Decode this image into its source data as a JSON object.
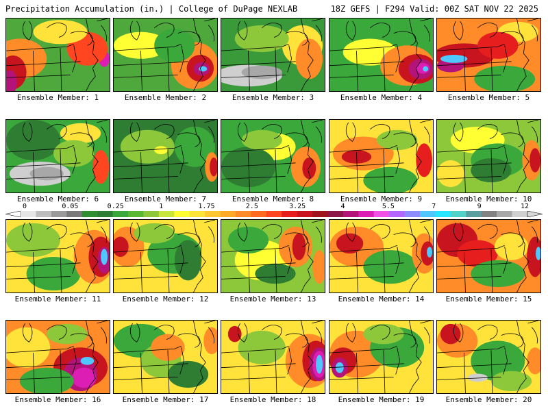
{
  "header": {
    "title": "Precipitation Accumulation (in.) | College of DuPage NEXLAB",
    "run_info": "18Z GEFS | F294 Valid: 00Z SAT NOV 22 2025"
  },
  "colorbar": {
    "labels": [
      "0",
      "0.05",
      "0.25",
      "1",
      "1.75",
      "2.5",
      "3.25",
      "4",
      "5.5",
      "7",
      "9",
      "12"
    ],
    "colors": [
      "#e6e6e6",
      "#bdbdbd",
      "#9a9a9a",
      "#7a7a7a",
      "#2f8f2f",
      "#2e7d32",
      "#3aa83a",
      "#58b832",
      "#8cc83a",
      "#c6e63c",
      "#ffff33",
      "#ffe23a",
      "#ffc832",
      "#ffaa28",
      "#ff8c28",
      "#ff6a1e",
      "#ff4620",
      "#e61e1e",
      "#c8141e",
      "#a0141e",
      "#8c1446",
      "#b4147a",
      "#dc1eb4",
      "#f050e6",
      "#b464ff",
      "#8c8cff",
      "#50c8ff",
      "#28e6ff",
      "#50d2c8",
      "#5aa0a0",
      "#828282",
      "#a8a8a8",
      "#cfcfcf"
    ]
  },
  "panels": [
    {
      "caption": "Ensemble Member: 1",
      "base": "#4fa83c",
      "blobs": [
        [
          "#ff8c28",
          20,
          60,
          40,
          30
        ],
        [
          "#c8141e",
          10,
          80,
          20,
          25
        ],
        [
          "#b4147a",
          6,
          95,
          10,
          18
        ],
        [
          "#dc1eb4",
          145,
          60,
          8,
          12
        ],
        [
          "#ff4620",
          120,
          45,
          30,
          25
        ],
        [
          "#ffe23a",
          80,
          20,
          40,
          18
        ]
      ]
    },
    {
      "caption": "Ensemble Member: 2",
      "base": "#4fa83c",
      "blobs": [
        [
          "#ffff33",
          40,
          40,
          40,
          20
        ],
        [
          "#ff8c28",
          120,
          70,
          35,
          35
        ],
        [
          "#c8141e",
          128,
          74,
          20,
          20
        ],
        [
          "#b4147a",
          130,
          75,
          12,
          10
        ],
        [
          "#50c8ff",
          132,
          75,
          6,
          4
        ],
        [
          "#3aa83a",
          90,
          40,
          30,
          25
        ]
      ]
    },
    {
      "caption": "Ensemble Member: 3",
      "base": "#3a9a3a",
      "blobs": [
        [
          "#ffe23a",
          120,
          40,
          30,
          30
        ],
        [
          "#ff8c28",
          130,
          60,
          20,
          30
        ],
        [
          "#cfcfcf",
          40,
          85,
          50,
          16
        ],
        [
          "#a8a8a8",
          60,
          80,
          30,
          10
        ],
        [
          "#8cc83a",
          60,
          30,
          40,
          20
        ]
      ]
    },
    {
      "caption": "Ensemble Member: 4",
      "base": "#3aa83a",
      "blobs": [
        [
          "#ffff33",
          60,
          50,
          40,
          20
        ],
        [
          "#ff8c28",
          115,
          70,
          40,
          30
        ],
        [
          "#c8141e",
          130,
          75,
          28,
          22
        ],
        [
          "#b4147a",
          135,
          75,
          18,
          15
        ],
        [
          "#dc1eb4",
          138,
          74,
          10,
          8
        ],
        [
          "#50c8ff",
          142,
          75,
          4,
          4
        ]
      ]
    },
    {
      "caption": "Ensemble Member: 5",
      "base": "#ff8c28",
      "blobs": [
        [
          "#c8141e",
          40,
          55,
          45,
          18
        ],
        [
          "#b4147a",
          20,
          70,
          20,
          10
        ],
        [
          "#50c8ff",
          25,
          60,
          20,
          6
        ],
        [
          "#3aa83a",
          100,
          90,
          45,
          20
        ],
        [
          "#ffe23a",
          120,
          20,
          30,
          15
        ],
        [
          "#e61e1e",
          90,
          40,
          30,
          20
        ]
      ]
    },
    {
      "caption": "Ensemble Member: 6",
      "base": "#3aa83a",
      "blobs": [
        [
          "#2e7d32",
          40,
          30,
          40,
          30
        ],
        [
          "#ffe23a",
          110,
          20,
          30,
          15
        ],
        [
          "#cfcfcf",
          50,
          80,
          45,
          18
        ],
        [
          "#a8a8a8",
          60,
          80,
          25,
          10
        ],
        [
          "#ff4620",
          140,
          70,
          12,
          25
        ],
        [
          "#8cc83a",
          100,
          50,
          30,
          20
        ]
      ]
    },
    {
      "caption": "Ensemble Member: 7",
      "base": "#2e7d32",
      "blobs": [
        [
          "#8cc83a",
          50,
          40,
          40,
          25
        ],
        [
          "#ffff33",
          70,
          45,
          10,
          6
        ],
        [
          "#3aa83a",
          120,
          40,
          30,
          30
        ],
        [
          "#ff8c28",
          145,
          70,
          10,
          22
        ],
        [
          "#c8141e",
          148,
          70,
          6,
          14
        ]
      ]
    },
    {
      "caption": "Ensemble Member: 8",
      "base": "#3aa83a",
      "blobs": [
        [
          "#ffff33",
          80,
          40,
          30,
          20
        ],
        [
          "#ff8c28",
          125,
          70,
          22,
          30
        ],
        [
          "#c8141e",
          130,
          72,
          10,
          16
        ],
        [
          "#2e7d32",
          40,
          70,
          40,
          30
        ],
        [
          "#8cc83a",
          60,
          30,
          30,
          15
        ]
      ]
    },
    {
      "caption": "Ensemble Member: 9",
      "base": "#ffe23a",
      "blobs": [
        [
          "#ff8c28",
          50,
          50,
          45,
          25
        ],
        [
          "#c8141e",
          40,
          55,
          22,
          10
        ],
        [
          "#3aa83a",
          90,
          90,
          40,
          20
        ],
        [
          "#e61e1e",
          140,
          60,
          12,
          25
        ],
        [
          "#8cc83a",
          100,
          30,
          30,
          15
        ]
      ]
    },
    {
      "caption": "Ensemble Member: 10",
      "base": "#8cc83a",
      "blobs": [
        [
          "#ffff33",
          60,
          30,
          40,
          20
        ],
        [
          "#3aa83a",
          90,
          60,
          40,
          25
        ],
        [
          "#2e7d32",
          80,
          75,
          30,
          18
        ],
        [
          "#ff8c28",
          140,
          60,
          14,
          30
        ],
        [
          "#c8141e",
          145,
          60,
          8,
          18
        ],
        [
          "#ffe23a",
          20,
          80,
          20,
          20
        ]
      ]
    },
    {
      "caption": "Ensemble Member: 11",
      "base": "#ffe23a",
      "blobs": [
        [
          "#8cc83a",
          40,
          30,
          40,
          25
        ],
        [
          "#3aa83a",
          70,
          80,
          40,
          25
        ],
        [
          "#ff8c28",
          130,
          55,
          30,
          40
        ],
        [
          "#c8141e",
          140,
          55,
          18,
          30
        ],
        [
          "#b4147a",
          145,
          60,
          10,
          20
        ],
        [
          "#50c8ff",
          145,
          55,
          5,
          12
        ]
      ]
    },
    {
      "caption": "Ensemble Member: 12",
      "base": "#ffe23a",
      "blobs": [
        [
          "#ff8c28",
          20,
          40,
          25,
          30
        ],
        [
          "#c8141e",
          10,
          40,
          12,
          15
        ],
        [
          "#3aa83a",
          90,
          50,
          40,
          30
        ],
        [
          "#2e7d32",
          110,
          60,
          20,
          30
        ],
        [
          "#8cc83a",
          60,
          20,
          30,
          15
        ]
      ]
    },
    {
      "caption": "Ensemble Member: 13",
      "base": "#8cc83a",
      "blobs": [
        [
          "#ffff33",
          60,
          60,
          40,
          30
        ],
        [
          "#3aa83a",
          40,
          30,
          30,
          20
        ],
        [
          "#ff8c28",
          110,
          40,
          25,
          30
        ],
        [
          "#c8141e",
          115,
          40,
          10,
          20
        ],
        [
          "#2e7d32",
          80,
          80,
          30,
          15
        ],
        [
          "#ff8c28",
          145,
          70,
          10,
          25
        ]
      ]
    },
    {
      "caption": "Ensemble Member: 14",
      "base": "#ffe23a",
      "blobs": [
        [
          "#ff8c28",
          40,
          40,
          40,
          30
        ],
        [
          "#c8141e",
          30,
          35,
          20,
          15
        ],
        [
          "#3aa83a",
          90,
          70,
          40,
          25
        ],
        [
          "#ff8c28",
          140,
          50,
          18,
          30
        ],
        [
          "#c8141e",
          145,
          50,
          10,
          18
        ],
        [
          "#50c8ff",
          148,
          48,
          4,
          8
        ]
      ]
    },
    {
      "caption": "Ensemble Member: 15",
      "base": "#ff8c28",
      "blobs": [
        [
          "#c8141e",
          30,
          30,
          30,
          25
        ],
        [
          "#e61e1e",
          60,
          50,
          30,
          20
        ],
        [
          "#3aa83a",
          90,
          80,
          40,
          20
        ],
        [
          "#ffe23a",
          110,
          40,
          25,
          20
        ],
        [
          "#c8141e",
          145,
          55,
          12,
          30
        ],
        [
          "#50c8ff",
          150,
          50,
          4,
          10
        ]
      ]
    },
    {
      "caption": "Ensemble Member: 16",
      "base": "#ff8c28",
      "blobs": [
        [
          "#ffe23a",
          30,
          40,
          35,
          30
        ],
        [
          "#c8141e",
          110,
          70,
          40,
          30
        ],
        [
          "#b4147a",
          110,
          80,
          25,
          25
        ],
        [
          "#dc1eb4",
          115,
          85,
          18,
          15
        ],
        [
          "#50c8ff",
          120,
          60,
          10,
          6
        ],
        [
          "#3aa83a",
          60,
          90,
          40,
          20
        ],
        [
          "#8cc83a",
          90,
          20,
          30,
          15
        ]
      ]
    },
    {
      "caption": "Ensemble Member: 17",
      "base": "#ffe23a",
      "blobs": [
        [
          "#3aa83a",
          40,
          30,
          40,
          25
        ],
        [
          "#8cc83a",
          70,
          60,
          30,
          25
        ],
        [
          "#ff8c28",
          80,
          40,
          25,
          20
        ],
        [
          "#2e7d32",
          110,
          80,
          30,
          20
        ],
        [
          "#ff8c28",
          145,
          30,
          12,
          20
        ]
      ]
    },
    {
      "caption": "Ensemble Member: 18",
      "base": "#ffe23a",
      "blobs": [
        [
          "#ff8c28",
          130,
          60,
          35,
          40
        ],
        [
          "#c8141e",
          140,
          60,
          20,
          30
        ],
        [
          "#b4147a",
          145,
          65,
          15,
          25
        ],
        [
          "#dc1eb4",
          145,
          65,
          10,
          20
        ],
        [
          "#50c8ff",
          145,
          65,
          5,
          14
        ],
        [
          "#8cc83a",
          60,
          40,
          35,
          25
        ],
        [
          "#c8141e",
          20,
          20,
          10,
          12
        ]
      ]
    },
    {
      "caption": "Ensemble Member: 19",
      "base": "#ffe23a",
      "blobs": [
        [
          "#ff8c28",
          40,
          50,
          40,
          35
        ],
        [
          "#c8141e",
          20,
          60,
          20,
          20
        ],
        [
          "#b4147a",
          15,
          70,
          12,
          15
        ],
        [
          "#50c8ff",
          15,
          70,
          6,
          8
        ],
        [
          "#3aa83a",
          100,
          40,
          40,
          30
        ],
        [
          "#8cc83a",
          80,
          20,
          30,
          15
        ]
      ]
    },
    {
      "caption": "Ensemble Member: 20",
      "base": "#ffe23a",
      "blobs": [
        [
          "#ff8c28",
          30,
          30,
          30,
          25
        ],
        [
          "#c8141e",
          20,
          20,
          15,
          15
        ],
        [
          "#3aa83a",
          90,
          60,
          40,
          30
        ],
        [
          "#8cc83a",
          110,
          90,
          30,
          15
        ],
        [
          "#cfcfcf",
          60,
          85,
          15,
          6
        ],
        [
          "#ff8c28",
          145,
          60,
          12,
          20
        ]
      ]
    }
  ]
}
